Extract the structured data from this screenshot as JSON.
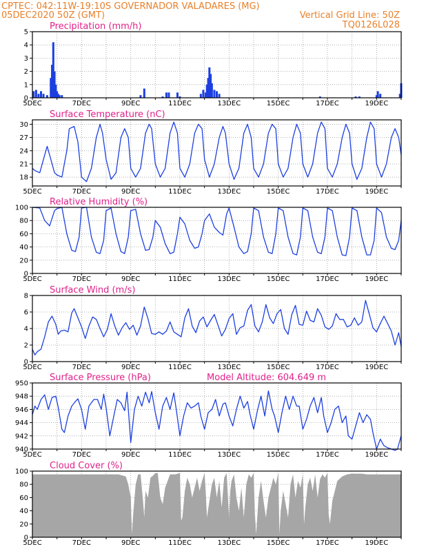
{
  "header": {
    "left_line1": "CPTEC:   042:11W-19:10S   GOVERNADOR VALADARES (MG)",
    "left_line2": "05DEC2020 50Z (GMT)",
    "right_line2": "Vertical Grid Line: 50Z",
    "right_line3": "TQ0126L028"
  },
  "x_axis": {
    "day_labels": [
      "5DEC",
      "7DEC",
      "9DEC",
      "11DEC",
      "13DEC",
      "15DEC",
      "17DEC",
      "19DEC"
    ],
    "day_offsets": [
      0,
      2,
      4,
      6,
      8,
      10,
      12,
      14
    ],
    "total_days": 15
  },
  "chart_data": [
    {
      "type": "bar",
      "title": "Precipitation (mm/h)",
      "ylim": [
        0,
        5
      ],
      "yticks": [
        "0",
        "1",
        "2",
        "3",
        "4",
        "5"
      ],
      "ytick_values": [
        0,
        1,
        2,
        3,
        4,
        5
      ],
      "x_days": [
        0.05,
        0.15,
        0.25,
        0.35,
        0.45,
        0.6,
        0.75,
        0.8,
        0.85,
        0.9,
        0.95,
        1.0,
        1.05,
        1.1,
        1.2,
        4.4,
        4.55,
        5.3,
        5.45,
        5.55,
        5.9,
        6.0,
        6.85,
        6.95,
        7.05,
        7.1,
        7.15,
        7.2,
        7.25,
        7.3,
        7.4,
        7.5,
        7.6,
        11.7,
        13.15,
        13.3,
        14.0,
        14.05,
        14.15,
        14.95,
        15.0
      ],
      "values": [
        0.5,
        0.6,
        0.3,
        0.5,
        0.3,
        0.2,
        1.5,
        2.5,
        4.2,
        2.0,
        1.0,
        0.5,
        0.3,
        0.2,
        0.2,
        0.2,
        0.7,
        0.1,
        0.4,
        0.4,
        0.4,
        0.1,
        0.3,
        0.6,
        0.4,
        1.0,
        1.5,
        2.3,
        1.8,
        1.1,
        0.6,
        0.5,
        0.3,
        0.1,
        0.1,
        0.1,
        0.2,
        0.5,
        0.3,
        0.3,
        1.1
      ]
    },
    {
      "type": "line",
      "title": "Surface Temperature (nC)",
      "ylim": [
        16,
        31
      ],
      "yticks": [
        "18",
        "21",
        "24",
        "27",
        "30"
      ],
      "ytick_values": [
        18,
        21,
        24,
        27,
        30
      ],
      "x_days": [
        0.0,
        0.1,
        0.3,
        0.5,
        0.6,
        0.75,
        0.9,
        1.0,
        1.2,
        1.4,
        1.5,
        1.7,
        1.85,
        2.0,
        2.2,
        2.4,
        2.6,
        2.75,
        2.85,
        3.0,
        3.2,
        3.4,
        3.6,
        3.75,
        3.9,
        4.0,
        4.2,
        4.4,
        4.6,
        4.75,
        4.85,
        5.0,
        5.2,
        5.4,
        5.6,
        5.75,
        5.9,
        6.0,
        6.2,
        6.4,
        6.6,
        6.75,
        6.9,
        7.0,
        7.2,
        7.4,
        7.6,
        7.75,
        7.85,
        8.0,
        8.2,
        8.4,
        8.6,
        8.75,
        8.9,
        9.0,
        9.2,
        9.4,
        9.6,
        9.75,
        9.9,
        10.0,
        10.2,
        10.4,
        10.6,
        10.75,
        10.9,
        11.0,
        11.2,
        11.4,
        11.6,
        11.75,
        11.9,
        12.0,
        12.2,
        12.4,
        12.6,
        12.75,
        12.9,
        13.0,
        13.2,
        13.4,
        13.6,
        13.75,
        13.9,
        14.0,
        14.2,
        14.4,
        14.6,
        14.75,
        14.9,
        15.0
      ],
      "values": [
        20,
        19.5,
        19,
        23,
        25,
        22,
        19,
        18.5,
        18,
        24,
        29,
        29.5,
        26,
        18,
        17,
        20,
        27,
        30,
        28,
        22,
        17.5,
        19,
        27,
        29,
        27,
        20,
        18,
        20,
        28,
        30,
        29,
        21,
        18,
        20,
        28,
        30.5,
        28,
        20,
        18,
        21,
        28,
        30,
        29,
        22,
        18,
        21,
        27,
        29.5,
        28,
        21,
        17.5,
        20,
        28,
        30,
        27,
        20,
        18,
        21,
        28,
        30,
        29,
        21,
        18,
        20,
        27,
        30,
        28,
        21,
        18,
        21,
        28,
        30.5,
        29,
        20,
        18,
        21,
        27,
        30,
        28,
        21,
        17.5,
        20,
        27,
        30.5,
        29,
        21,
        18,
        21,
        27,
        29,
        27,
        23
      ]
    },
    {
      "type": "line",
      "title": "Relative Humidity (%)",
      "ylim": [
        0,
        100
      ],
      "yticks": [
        "0",
        "20",
        "40",
        "60",
        "80",
        "100"
      ],
      "ytick_values": [
        0,
        20,
        40,
        60,
        80,
        100
      ],
      "x_days": [
        0.0,
        0.3,
        0.5,
        0.7,
        0.9,
        1.0,
        1.2,
        1.4,
        1.6,
        1.75,
        1.9,
        2.0,
        2.2,
        2.4,
        2.6,
        2.75,
        2.9,
        3.0,
        3.2,
        3.4,
        3.6,
        3.75,
        3.9,
        4.0,
        4.2,
        4.4,
        4.6,
        4.75,
        4.9,
        5.0,
        5.2,
        5.4,
        5.6,
        5.75,
        5.9,
        6.0,
        6.2,
        6.4,
        6.6,
        6.75,
        6.9,
        7.0,
        7.2,
        7.4,
        7.6,
        7.75,
        7.9,
        8.0,
        8.2,
        8.4,
        8.6,
        8.75,
        8.9,
        9.0,
        9.2,
        9.4,
        9.6,
        9.75,
        9.9,
        10.0,
        10.2,
        10.4,
        10.6,
        10.75,
        10.9,
        11.0,
        11.2,
        11.4,
        11.6,
        11.75,
        11.9,
        12.0,
        12.2,
        12.4,
        12.6,
        12.75,
        12.9,
        13.0,
        13.2,
        13.4,
        13.6,
        13.75,
        13.9,
        14.0,
        14.2,
        14.4,
        14.6,
        14.75,
        14.9,
        15.0
      ],
      "values": [
        100,
        99,
        80,
        72,
        95,
        98,
        100,
        60,
        35,
        33,
        55,
        99,
        100,
        55,
        32,
        30,
        50,
        95,
        99,
        60,
        33,
        30,
        55,
        95,
        97,
        60,
        35,
        36,
        55,
        80,
        70,
        45,
        30,
        32,
        60,
        85,
        75,
        50,
        38,
        40,
        60,
        80,
        90,
        70,
        62,
        58,
        90,
        99,
        70,
        40,
        30,
        33,
        60,
        99,
        95,
        55,
        32,
        30,
        60,
        99,
        95,
        55,
        30,
        28,
        55,
        99,
        95,
        55,
        32,
        30,
        55,
        99,
        95,
        55,
        28,
        27,
        55,
        99,
        95,
        55,
        28,
        28,
        50,
        99,
        92,
        55,
        38,
        36,
        50,
        80
      ]
    },
    {
      "type": "line",
      "title": "Surface Wind (m/s)",
      "ylim": [
        0,
        8
      ],
      "yticks": [
        "0",
        "2",
        "4",
        "6",
        "8"
      ],
      "ytick_values": [
        0,
        2,
        4,
        6,
        8
      ],
      "x_days": [
        0.0,
        0.1,
        0.2,
        0.35,
        0.5,
        0.65,
        0.8,
        0.95,
        1.05,
        1.15,
        1.3,
        1.45,
        1.6,
        1.7,
        1.85,
        2.0,
        2.15,
        2.3,
        2.45,
        2.6,
        2.75,
        2.9,
        3.05,
        3.2,
        3.35,
        3.5,
        3.65,
        3.8,
        3.95,
        4.1,
        4.25,
        4.4,
        4.55,
        4.7,
        4.85,
        5.0,
        5.15,
        5.3,
        5.45,
        5.6,
        5.75,
        5.9,
        6.05,
        6.2,
        6.35,
        6.5,
        6.65,
        6.8,
        6.95,
        7.1,
        7.25,
        7.4,
        7.55,
        7.7,
        7.85,
        8.0,
        8.15,
        8.3,
        8.45,
        8.6,
        8.75,
        8.9,
        9.05,
        9.2,
        9.35,
        9.5,
        9.65,
        9.8,
        9.95,
        10.1,
        10.25,
        10.4,
        10.55,
        10.7,
        10.85,
        11.0,
        11.15,
        11.3,
        11.45,
        11.6,
        11.75,
        11.9,
        12.05,
        12.2,
        12.35,
        12.5,
        12.65,
        12.8,
        12.95,
        13.1,
        13.25,
        13.4,
        13.55,
        13.7,
        13.85,
        14.0,
        14.15,
        14.3,
        14.45,
        14.6,
        14.75,
        14.9,
        15.0
      ],
      "values": [
        1.5,
        0.8,
        1.2,
        1.5,
        3.0,
        4.8,
        5.5,
        4.5,
        3.3,
        3.7,
        3.8,
        3.6,
        5.9,
        6.4,
        5.3,
        4.2,
        2.8,
        4.3,
        5.4,
        5.1,
        4.0,
        3.0,
        3.9,
        5.8,
        4.3,
        3.2,
        4.1,
        4.7,
        3.9,
        4.4,
        3.2,
        4.3,
        6.6,
        5.2,
        3.4,
        3.3,
        3.6,
        3.3,
        3.7,
        4.8,
        3.6,
        3.3,
        3.0,
        5.3,
        6.4,
        4.3,
        3.5,
        4.9,
        5.4,
        4.2,
        5.0,
        5.7,
        4.4,
        3.1,
        3.9,
        5.2,
        5.8,
        3.3,
        4.1,
        4.3,
        6.2,
        6.9,
        4.3,
        3.6,
        4.8,
        6.9,
        5.3,
        4.6,
        5.8,
        6.3,
        4.0,
        3.3,
        5.7,
        6.8,
        4.5,
        4.4,
        6.1,
        5.0,
        4.8,
        6.4,
        5.6,
        4.2,
        3.9,
        4.3,
        5.8,
        5.1,
        5.1,
        4.2,
        4.4,
        5.3,
        4.4,
        4.8,
        7.4,
        5.8,
        4.1,
        3.6,
        4.6,
        5.5,
        4.6,
        3.7,
        2.0,
        3.5,
        1.8
      ]
    },
    {
      "type": "line",
      "title": "Surface Pressure (hPa)",
      "annotation": "Model Altitude: 604.649  m",
      "ylim": [
        940,
        950
      ],
      "yticks": [
        "940",
        "942",
        "944",
        "946",
        "948",
        "950"
      ],
      "ytick_values": [
        940,
        942,
        944,
        946,
        948,
        950
      ],
      "x_days": [
        0.0,
        0.1,
        0.2,
        0.35,
        0.5,
        0.65,
        0.8,
        0.95,
        1.05,
        1.2,
        1.3,
        1.45,
        1.6,
        1.75,
        1.85,
        2.0,
        2.15,
        2.3,
        2.5,
        2.65,
        2.8,
        2.9,
        3.0,
        3.15,
        3.3,
        3.45,
        3.6,
        3.75,
        3.85,
        4.0,
        4.15,
        4.3,
        4.45,
        4.6,
        4.75,
        4.85,
        5.0,
        5.15,
        5.3,
        5.45,
        5.6,
        5.75,
        5.85,
        6.0,
        6.15,
        6.3,
        6.45,
        6.6,
        6.75,
        6.85,
        7.0,
        7.15,
        7.3,
        7.45,
        7.6,
        7.75,
        7.85,
        8.0,
        8.15,
        8.3,
        8.45,
        8.6,
        8.75,
        8.85,
        9.0,
        9.15,
        9.3,
        9.45,
        9.6,
        9.75,
        9.85,
        10.0,
        10.15,
        10.3,
        10.45,
        10.6,
        10.75,
        10.85,
        11.0,
        11.15,
        11.3,
        11.45,
        11.6,
        11.75,
        11.85,
        12.0,
        12.15,
        12.3,
        12.45,
        12.6,
        12.75,
        12.85,
        13.0,
        13.15,
        13.3,
        13.45,
        13.6,
        13.75,
        13.85,
        14.0,
        14.15,
        14.3,
        14.45,
        14.6,
        14.75,
        14.85,
        15.0
      ],
      "values": [
        945.2,
        946.5,
        946.0,
        947.5,
        948.2,
        946.0,
        947.8,
        948.0,
        946.3,
        943.0,
        942.5,
        945.0,
        946.5,
        947.2,
        947.6,
        946.0,
        943.0,
        946.5,
        947.5,
        947.5,
        946.0,
        948.3,
        946.2,
        942.0,
        944.8,
        947.5,
        947.0,
        945.8,
        948.6,
        941.0,
        946.0,
        948.0,
        946.5,
        948.6,
        947.0,
        948.7,
        945.5,
        943.0,
        946.5,
        947.8,
        946.0,
        948.5,
        946.0,
        942.0,
        945.0,
        947.0,
        946.2,
        946.5,
        947.0,
        945.0,
        943.0,
        945.5,
        946.0,
        947.5,
        945.0,
        946.8,
        947.0,
        945.0,
        943.5,
        946.0,
        948.0,
        946.2,
        947.2,
        945.3,
        943.0,
        945.8,
        948.0,
        945.0,
        948.8,
        946.0,
        945.0,
        942.5,
        945.5,
        948.0,
        946.0,
        948.0,
        946.5,
        946.5,
        943.0,
        944.5,
        946.5,
        947.8,
        945.5,
        947.8,
        945.0,
        942.5,
        944.0,
        946.0,
        946.5,
        944.0,
        945.0,
        942.0,
        941.5,
        943.5,
        945.5,
        944.0,
        945.2,
        944.5,
        942.5,
        940.0,
        941.5,
        940.5,
        940.2,
        940.0,
        939.8,
        940.0,
        942.0
      ]
    },
    {
      "type": "area",
      "title": "Cloud Cover (%)",
      "ylim": [
        0,
        100
      ],
      "yticks": [
        "0",
        "20",
        "40",
        "60",
        "80",
        "100"
      ],
      "ytick_values": [
        0,
        20,
        40,
        60,
        80,
        100
      ],
      "x_days": [
        0.0,
        0.5,
        1.0,
        1.5,
        2.0,
        2.5,
        3.0,
        3.5,
        3.8,
        3.9,
        4.0,
        4.05,
        4.1,
        4.2,
        4.3,
        4.4,
        4.5,
        4.55,
        4.6,
        4.7,
        4.8,
        4.9,
        5.0,
        5.1,
        5.2,
        5.3,
        5.4,
        5.6,
        5.8,
        6.0,
        6.05,
        6.1,
        6.2,
        6.3,
        6.4,
        6.5,
        6.6,
        6.7,
        6.8,
        6.9,
        7.0,
        7.05,
        7.1,
        7.2,
        7.3,
        7.4,
        7.5,
        7.6,
        7.7,
        7.8,
        7.9,
        8.0,
        8.05,
        8.1,
        8.2,
        8.3,
        8.4,
        8.5,
        8.6,
        8.7,
        8.8,
        8.9,
        9.0,
        9.05,
        9.1,
        9.2,
        9.3,
        9.4,
        9.5,
        9.6,
        9.7,
        9.8,
        9.9,
        10.0,
        10.05,
        10.1,
        10.2,
        10.3,
        10.4,
        10.5,
        10.6,
        10.7,
        10.8,
        10.9,
        11.0,
        11.05,
        11.1,
        11.2,
        11.3,
        11.4,
        11.5,
        11.6,
        11.7,
        11.8,
        11.9,
        12.0,
        12.05,
        12.1,
        12.2,
        12.4,
        12.6,
        12.8,
        13.0,
        13.2,
        13.4,
        13.6,
        13.8,
        14.0,
        14.3,
        14.6,
        14.8,
        15.0
      ],
      "values": [
        95,
        95,
        95,
        95,
        95,
        95,
        95,
        95,
        92,
        80,
        60,
        5,
        35,
        80,
        95,
        95,
        55,
        30,
        70,
        60,
        90,
        93,
        97,
        97,
        60,
        50,
        75,
        95,
        95,
        97,
        25,
        30,
        70,
        90,
        80,
        60,
        75,
        90,
        70,
        85,
        97,
        70,
        30,
        55,
        80,
        90,
        60,
        85,
        45,
        90,
        97,
        30,
        70,
        85,
        95,
        60,
        40,
        75,
        30,
        80,
        95,
        90,
        97,
        35,
        5,
        60,
        85,
        55,
        30,
        60,
        75,
        90,
        80,
        97,
        5,
        40,
        70,
        50,
        30,
        80,
        95,
        60,
        85,
        75,
        95,
        20,
        45,
        80,
        90,
        70,
        95,
        60,
        88,
        95,
        90,
        97,
        35,
        20,
        55,
        85,
        92,
        95,
        96,
        96,
        96,
        95,
        95,
        95,
        95,
        95,
        95,
        95
      ]
    }
  ]
}
